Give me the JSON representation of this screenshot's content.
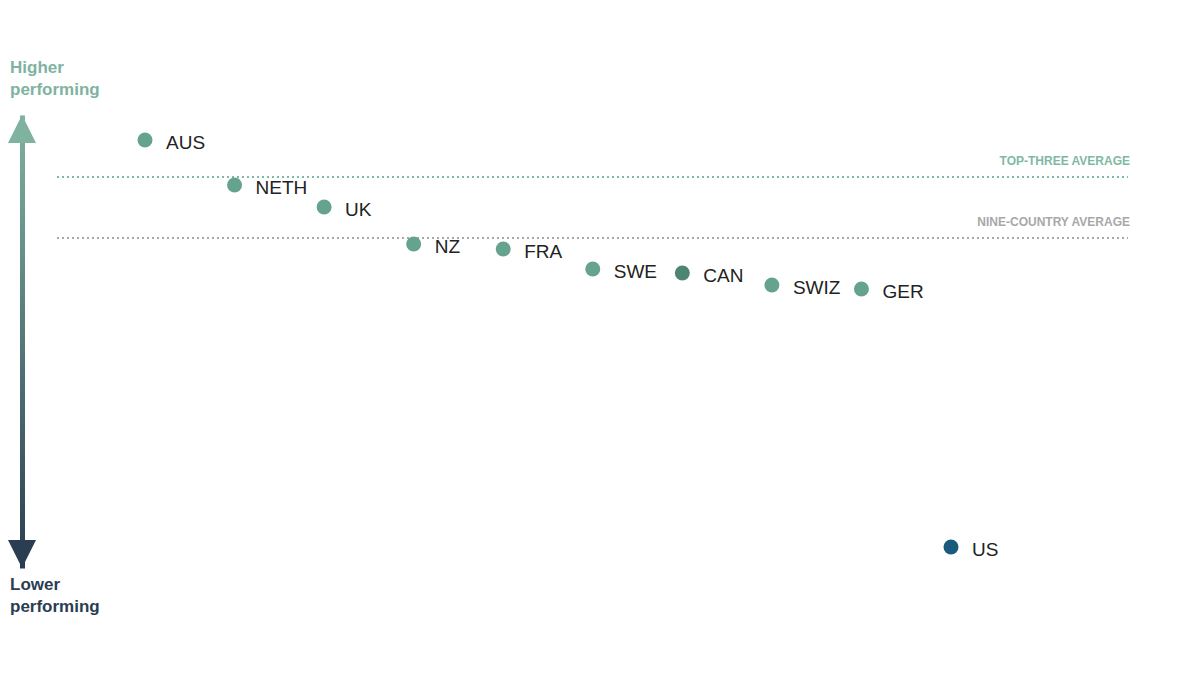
{
  "chart_data": {
    "type": "scatter",
    "categories": [
      "AUS",
      "NETH",
      "UK",
      "NZ",
      "FRA",
      "SWE",
      "CAN",
      "SWIZ",
      "GER",
      "US"
    ],
    "values": [
      0.98,
      0.53,
      0.31,
      -0.06,
      -0.11,
      -0.31,
      -0.35,
      -0.47,
      -0.51,
      -3.09
    ],
    "colors": [
      "#65a38f",
      "#65a38f",
      "#65a38f",
      "#65a38f",
      "#65a38f",
      "#65a38f",
      "#4d8474",
      "#65a38f",
      "#65a38f",
      "#1a5a7c"
    ],
    "ylim": [
      -3.3,
      1.23
    ],
    "tick_labels": false,
    "y_label_high": "Higher performing",
    "y_label_low": "Lower performing",
    "reference_lines": [
      {
        "label": "TOP-THREE AVERAGE",
        "value": 0.61,
        "color": "#7fb8a4"
      },
      {
        "label": "NINE-COUNTRY AVERAGE",
        "value": 0,
        "color": "#a8a8a8"
      }
    ]
  }
}
